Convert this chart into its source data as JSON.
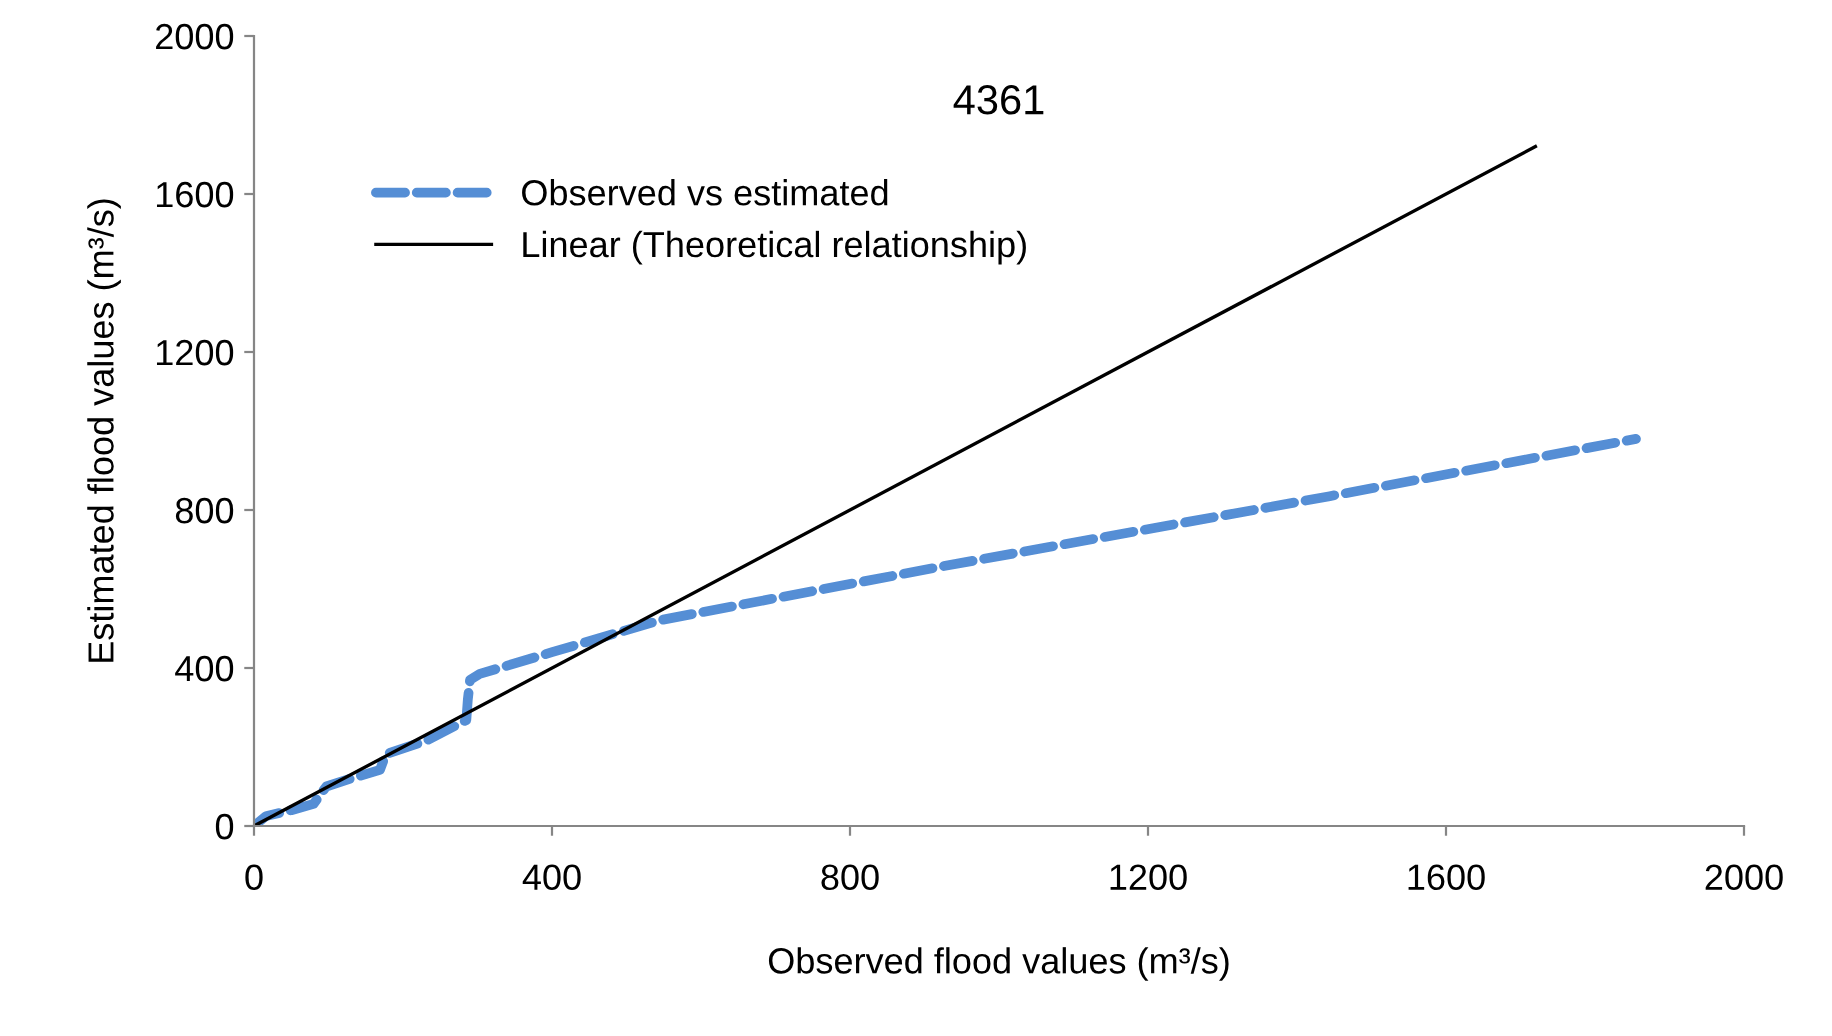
{
  "chart_data": {
    "type": "line",
    "title": "4361",
    "xlabel": "Observed flood values (m³/s)",
    "ylabel": "Estimated flood values (m³/s)",
    "xlim": [
      0,
      2000
    ],
    "ylim": [
      0,
      2000
    ],
    "xticks": [
      0,
      400,
      800,
      1200,
      1600,
      2000
    ],
    "yticks": [
      0,
      400,
      800,
      1200,
      1600,
      2000
    ],
    "grid": false,
    "legend": "top left",
    "series": [
      {
        "name": "Observed vs estimated",
        "color": "#558ed5",
        "line_style": "dashed",
        "x": [
          0,
          16,
          50,
          80,
          97,
          130,
          169,
          177,
          230,
          285,
          287,
          290,
          303,
          400,
          545,
          926,
          1444,
          1855
        ],
        "values": [
          0,
          25,
          40,
          56,
          100,
          120,
          142,
          182,
          215,
          268,
          320,
          370,
          385,
          440,
          521,
          658,
          835,
          980
        ]
      },
      {
        "name": "Linear (Theoretical relationship)",
        "color": "#000000",
        "line_style": "solid",
        "x": [
          0,
          1720
        ],
        "values": [
          0,
          1720
        ]
      }
    ]
  }
}
